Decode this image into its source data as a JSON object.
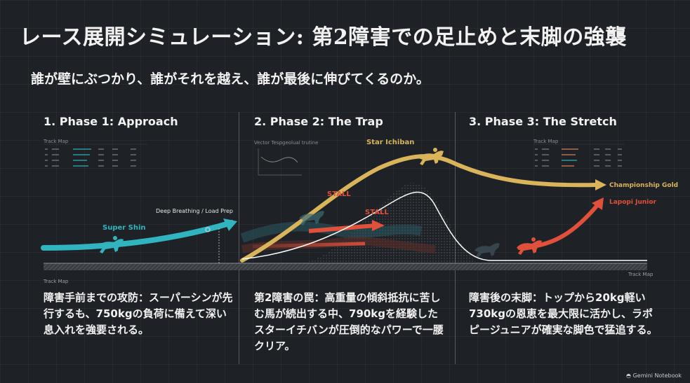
{
  "title": "レース展開シミュレーション: 第2障害での足止めと末脚の強襲",
  "subtitle": "誰が壁にぶつかり、誰がそれを越え、誰が最後に伸びてくるのか。",
  "phases": [
    {
      "heading": "1. Phase 1: Approach",
      "description": "障害手前までの攻防：スーパーシンが先行するも、750kgの負荷に備えて深い息入れを強要される。"
    },
    {
      "heading": "2. Phase 2: The Trap",
      "description": "第2障害の罠：高重量の傾斜抵抗に苦しむ馬が続出する中、790kgを経験したスターイチバンが圧倒的なパワーで一腰クリア。"
    },
    {
      "heading": "3. Phase 3: The Stretch",
      "description": "障害後の末脚：トップから20kg軽い730kgの恩恵を最大限に活かし、ラポピージュニアが確実な脚色で猛追する。"
    }
  ],
  "labels": {
    "super_shin": "Super Shin",
    "deep_breathing": "Deep Breathing / Load Prep",
    "star_ichiban": "Star Ichiban",
    "stall_1": "STALL",
    "stall_2": "STALL",
    "championship_gold": "Championship Gold",
    "lapopi_junior": "Lapopi Junior",
    "track_map_1": "Track Map",
    "track_map_2": "Track Map",
    "track_map_left": "Track Map",
    "track_map_right": "Track Map",
    "vector_title": "Vector Tespgeolual trutine"
  },
  "colors": {
    "teal": "#2fb4c0",
    "gold": "#d9b45a",
    "red": "#e0503a",
    "white_curve": "#ffffff",
    "background": "#1e2126"
  },
  "icons": [
    "horse-rider-icon",
    "gemini-logo-icon"
  ],
  "footer": "Gemini Notebook"
}
